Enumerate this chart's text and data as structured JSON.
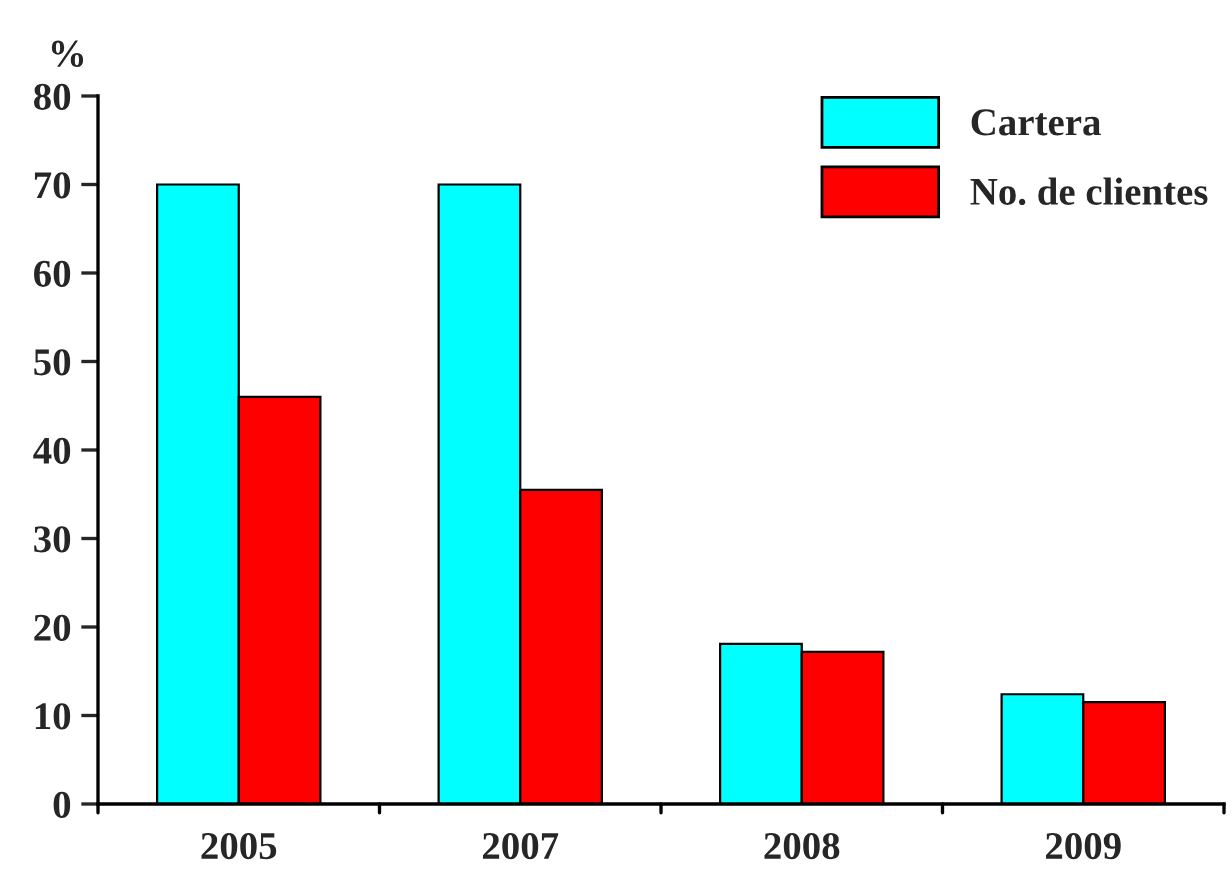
{
  "chart_data": {
    "type": "bar",
    "ylabel": "%",
    "categories": [
      "2005",
      "2007",
      "2008",
      "2009"
    ],
    "series": [
      {
        "name": "Cartera",
        "color": "#00ffff",
        "values": [
          70,
          70,
          18.1,
          12.4
        ]
      },
      {
        "name": "No. de clientes",
        "color": "#ff0000",
        "values": [
          46,
          35.5,
          17.2,
          11.5
        ]
      }
    ],
    "ylim": [
      0,
      80
    ],
    "yticks": [
      0,
      10,
      20,
      30,
      40,
      50,
      60,
      70,
      80
    ],
    "grid": false,
    "legend": "top right"
  }
}
